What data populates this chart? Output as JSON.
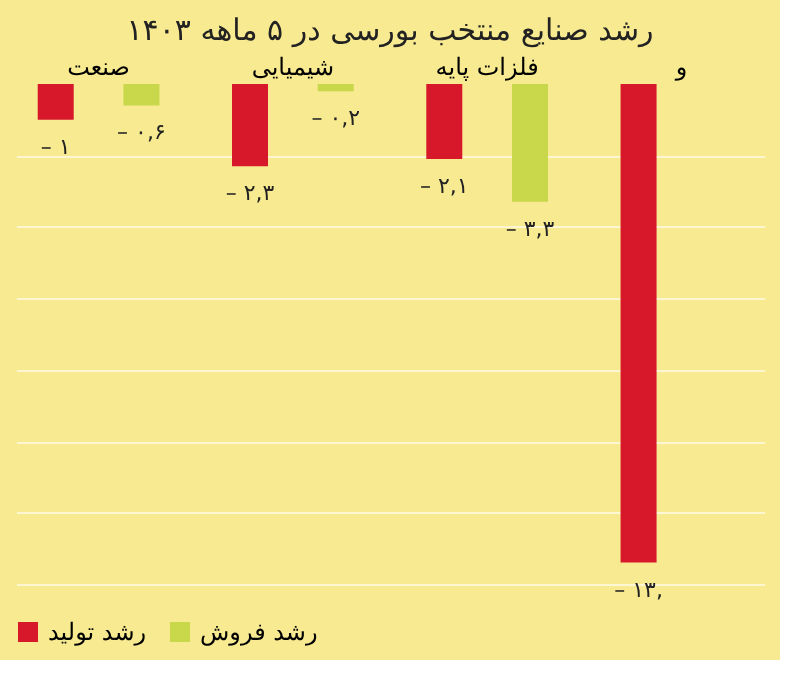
{
  "chart_data": {
    "type": "bar",
    "title": "رشد صنایع منتخب بورسی در ۵ ماهه ۱۴۰۳",
    "categories": [
      "صنعت",
      "شیمیایی",
      "فلزات پایه",
      "و"
    ],
    "series": [
      {
        "name": "رشد تولید",
        "color": "#d7182a",
        "values": [
          -1,
          -2.3,
          -2.1,
          -13.4
        ],
        "value_labels": [
          "– ۱",
          "– ۲,۳",
          "– ۲,۱",
          "– ۱۳,"
        ]
      },
      {
        "name": "رشد فروش",
        "color": "#c8d84a",
        "values": [
          -0.6,
          -0.2,
          -3.3,
          null
        ],
        "value_labels": [
          "– ۰,۶",
          "– ۰,۲",
          "– ۳,۳",
          null
        ]
      }
    ],
    "ylim": [
      -14,
      0
    ],
    "yticks": [
      {
        "value": -2,
        "label": null
      },
      {
        "value": -4,
        "label": null
      },
      {
        "value": -6,
        "label": null
      },
      {
        "value": -8,
        "label": null
      },
      {
        "value": -10,
        "label": null
      },
      {
        "value": -12,
        "label": null
      },
      {
        "value": -14,
        "label": null
      }
    ],
    "grid": "y",
    "legend": "bottom",
    "tick_labels": "x"
  }
}
